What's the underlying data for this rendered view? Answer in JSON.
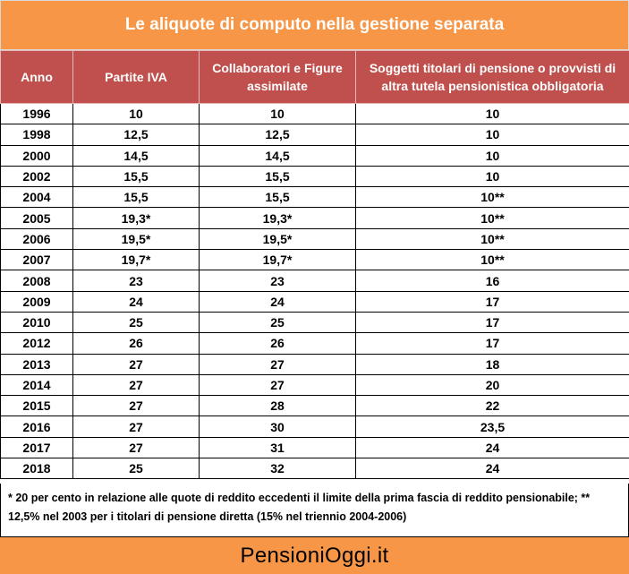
{
  "title": "Le aliquote di computo nella gestione separata",
  "table": {
    "headers": [
      "Anno",
      "Partite IVA",
      "Collaboratori e Figure assimilate",
      "Soggetti titolari di pensione o provvisti di altra tutela pensionistica obbligatoria"
    ],
    "rows": [
      [
        "1996",
        "10",
        "10",
        "10"
      ],
      [
        "1998",
        "12,5",
        "12,5",
        "10"
      ],
      [
        "2000",
        "14,5",
        "14,5",
        "10"
      ],
      [
        "2002",
        "15,5",
        "15,5",
        "10"
      ],
      [
        "2004",
        "15,5",
        "15,5",
        "10**"
      ],
      [
        "2005",
        "19,3*",
        "19,3*",
        "10**"
      ],
      [
        "2006",
        "19,5*",
        "19,5*",
        "10**"
      ],
      [
        "2007",
        "19,7*",
        "19,7*",
        "10**"
      ],
      [
        "2008",
        "23",
        "23",
        "16"
      ],
      [
        "2009",
        "24",
        "24",
        "17"
      ],
      [
        "2010",
        "25",
        "25",
        "17"
      ],
      [
        "2012",
        "26",
        "26",
        "17"
      ],
      [
        "2013",
        "27",
        "27",
        "18"
      ],
      [
        "2014",
        "27",
        "27",
        "20"
      ],
      [
        "2015",
        "27",
        "28",
        "22"
      ],
      [
        "2016",
        "27",
        "30",
        "23,5"
      ],
      [
        "2017",
        "27",
        "31",
        "24"
      ],
      [
        "2018",
        "25",
        "32",
        "24"
      ]
    ]
  },
  "footnote": "* 20 per cento in relazione alle quote di reddito eccedenti il limite della prima fascia di reddito pensionabile; ** 12,5% nel 2003 per i titolari di pensione diretta (15% nel triennio 2004-2006)",
  "brand": "PensioniOggi.it",
  "colors": {
    "title_bar": "#f79646",
    "header_row": "#c0504d",
    "brand_bar": "#f79646"
  }
}
